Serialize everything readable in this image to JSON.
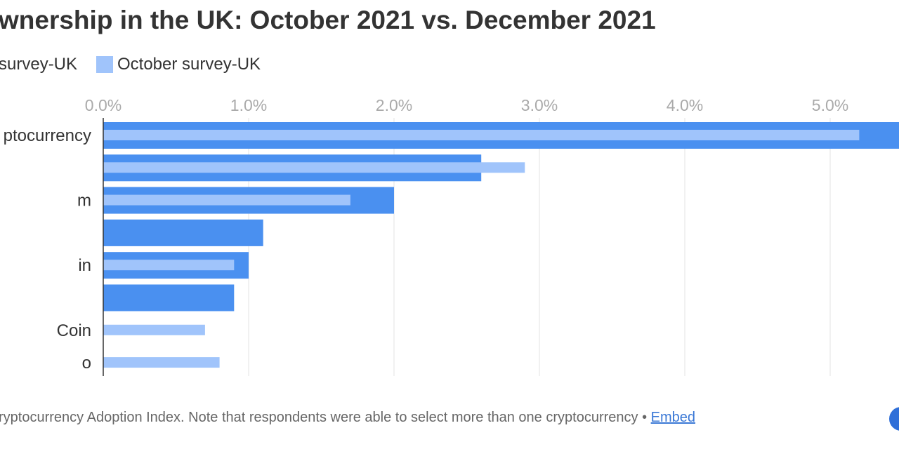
{
  "chart_data": {
    "type": "bar",
    "orientation": "horizontal",
    "title": "wnership in the UK: October 2021 vs. December 2021",
    "categories": [
      "ptocurrency",
      "",
      "m",
      "",
      "in",
      "",
      "Coin",
      "o"
    ],
    "series": [
      {
        "name": "survey-UK",
        "color": "#4a90f0",
        "values": [
          5.7,
          2.6,
          2.0,
          1.1,
          1.0,
          0.9,
          null,
          null
        ]
      },
      {
        "name": "October survey-UK",
        "color": "#a0c4fb",
        "values": [
          5.2,
          2.9,
          1.7,
          null,
          0.9,
          null,
          0.7,
          0.8
        ]
      }
    ],
    "x_ticks": [
      "0.0%",
      "1.0%",
      "2.0%",
      "3.0%",
      "4.0%",
      "5.0%"
    ],
    "x_tick_values": [
      0,
      1,
      2,
      3,
      4,
      5
    ],
    "xlim": [
      0,
      5.6
    ],
    "grid": true,
    "legend_placement": "top-left",
    "xlabel": "",
    "ylabel": ""
  },
  "footer": {
    "note": "ryptocurrency Adoption Index. Note that respondents were able to select more than one cryptocurrency • ",
    "embed_label": "Embed"
  }
}
